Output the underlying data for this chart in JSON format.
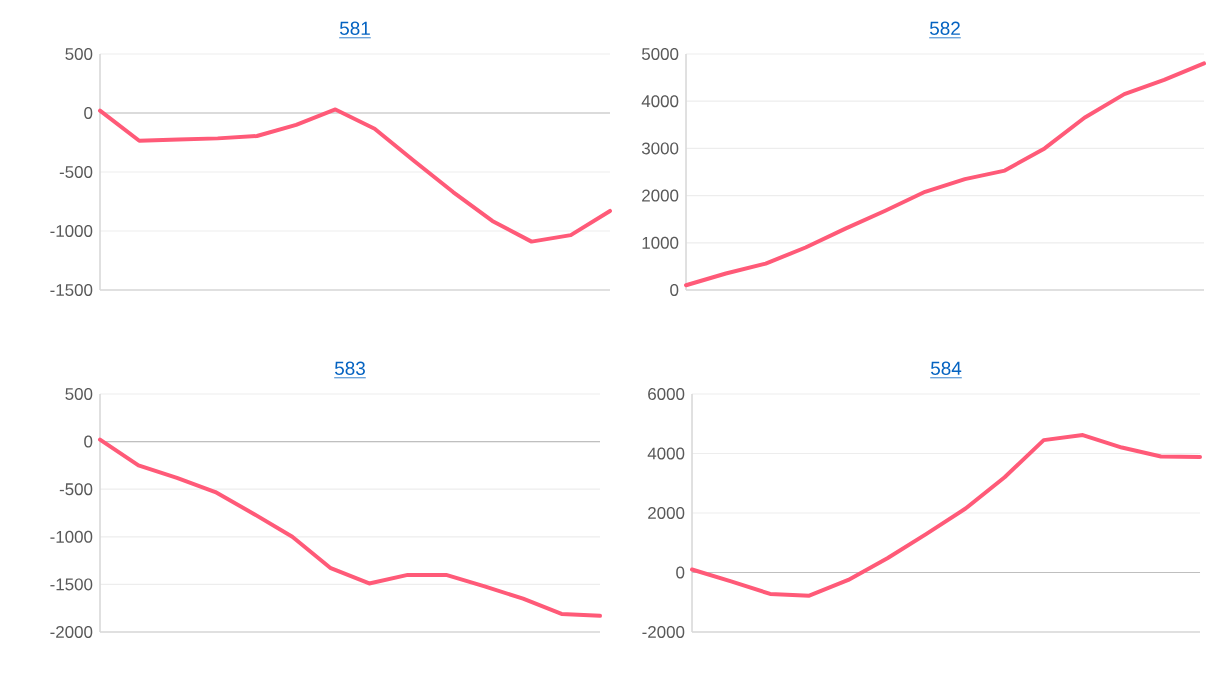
{
  "chart_data": [
    {
      "type": "line",
      "title": "581",
      "categories": [
        null,
        null,
        null,
        null,
        null,
        null,
        null,
        null,
        null,
        null,
        null,
        null,
        null,
        null
      ],
      "values": [
        20,
        -235,
        -225,
        -215,
        -195,
        -100,
        30,
        -133,
        -405,
        -670,
        -915,
        -1090,
        -1035,
        -830
      ],
      "color": "#ff5a78",
      "ylim": [
        -1500,
        500
      ],
      "yticks": [
        -1500,
        -1000,
        -500,
        0,
        500
      ],
      "grid": "y",
      "tick_labels": "y",
      "marker": "none"
    },
    {
      "type": "line",
      "title": "582",
      "categories": [
        null,
        null,
        null,
        null,
        null,
        null,
        null,
        null,
        null,
        null,
        null,
        null,
        null,
        null
      ],
      "values": [
        100,
        350,
        560,
        900,
        1300,
        1680,
        2080,
        2350,
        2530,
        3000,
        3650,
        4150,
        4450,
        4800
      ],
      "color": "#ff5a78",
      "ylim": [
        0,
        5000
      ],
      "yticks": [
        0,
        1000,
        2000,
        3000,
        4000,
        5000
      ],
      "grid": "y",
      "tick_labels": "y",
      "marker": "none"
    },
    {
      "type": "line",
      "title": "583",
      "categories": [
        null,
        null,
        null,
        null,
        null,
        null,
        null,
        null,
        null,
        null,
        null,
        null,
        null,
        null
      ],
      "values": [
        20,
        -250,
        -380,
        -530,
        -760,
        -1000,
        -1330,
        -1490,
        -1400,
        -1400,
        -1520,
        -1650,
        -1810,
        -1830
      ],
      "color": "#ff5a78",
      "ylim": [
        -2000,
        500
      ],
      "yticks": [
        -2000,
        -1500,
        -1000,
        -500,
        0,
        500
      ],
      "grid": "y",
      "tick_labels": "y",
      "marker": "none"
    },
    {
      "type": "line",
      "title": "584",
      "categories": [
        null,
        null,
        null,
        null,
        null,
        null,
        null,
        null,
        null,
        null,
        null,
        null,
        null,
        null
      ],
      "values": [
        100,
        -300,
        -720,
        -780,
        -250,
        480,
        1300,
        2150,
        3200,
        4450,
        4620,
        4200,
        3900,
        3880
      ],
      "color": "#ff5a78",
      "ylim": [
        -2000,
        6000
      ],
      "yticks": [
        -2000,
        0,
        2000,
        4000,
        6000
      ],
      "grid": "y",
      "tick_labels": "y",
      "marker": "none"
    }
  ]
}
